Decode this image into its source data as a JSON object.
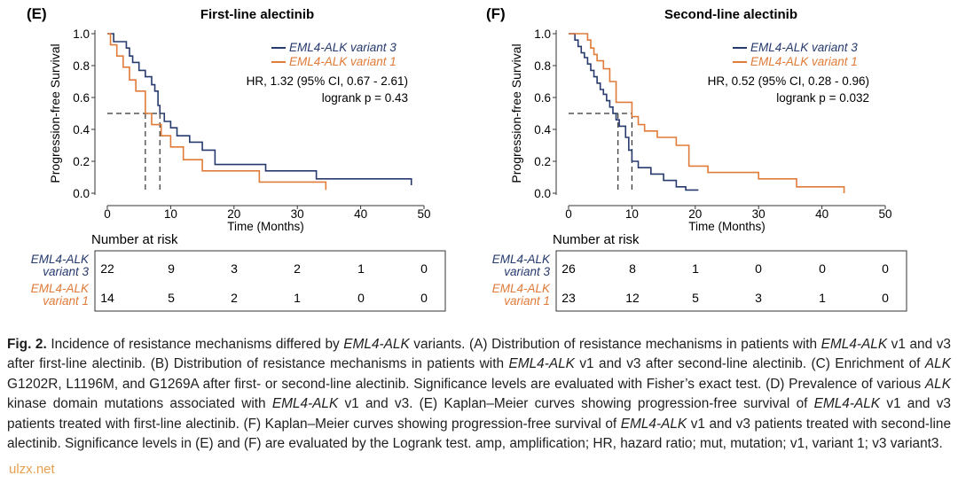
{
  "panels": [
    {
      "id": "E",
      "label": "(E)",
      "title": "First-line alectinib",
      "hr": "HR, 1.32 (95% CI, 0.67 - 2.61)",
      "p": "logrank p = 0.43",
      "risk_table": {
        "heading": "Number at risk",
        "rows": [
          {
            "name_line1": "EML4-ALK",
            "name_line2": "variant 3",
            "color": "#263a6e",
            "values": [
              "22",
              "9",
              "3",
              "2",
              "1",
              "0"
            ]
          },
          {
            "name_line1": "EML4-ALK",
            "name_line2": "variant 1",
            "color": "#e07b39",
            "values": [
              "14",
              "5",
              "2",
              "1",
              "0",
              "0"
            ]
          }
        ]
      }
    },
    {
      "id": "F",
      "label": "(F)",
      "title": "Second-line alectinib",
      "hr": "HR, 0.52 (95% CI, 0.28 - 0.96)",
      "p": "logrank p = 0.032",
      "risk_table": {
        "heading": "Number at risk",
        "rows": [
          {
            "name_line1": "EML4-ALK",
            "name_line2": "variant 3",
            "color": "#263a6e",
            "values": [
              "26",
              "8",
              "1",
              "0",
              "0",
              "0"
            ]
          },
          {
            "name_line1": "EML4-ALK",
            "name_line2": "variant 1",
            "color": "#e07b39",
            "values": [
              "23",
              "12",
              "5",
              "3",
              "1",
              "0"
            ]
          }
        ]
      }
    }
  ],
  "chart_data": [
    {
      "type": "line",
      "panel": "E",
      "title": "First-line alectinib",
      "xlabel": "Time  (Months)",
      "ylabel": "Progression-free Survival",
      "xlim": [
        0,
        50
      ],
      "ylim": [
        0,
        1
      ],
      "xticks": [
        "0",
        "10",
        "20",
        "30",
        "40",
        "50"
      ],
      "yticks": [
        "0.0",
        "0.2",
        "0.4",
        "0.6",
        "0.8",
        "1.0"
      ],
      "legend": "top-right",
      "median_lines": [
        {
          "y": 0.5,
          "x": 6
        },
        {
          "y": 0.5,
          "x": 8.3
        }
      ],
      "series": [
        {
          "name": "EML4-ALK variant 3",
          "color": "#263a6e",
          "step": true,
          "x": [
            0,
            1,
            2,
            3,
            3.5,
            4,
            5,
            6,
            7,
            7.5,
            8,
            8.3,
            9,
            10,
            11,
            13,
            15,
            17,
            25,
            33,
            48
          ],
          "y": [
            1.0,
            0.95,
            0.95,
            0.91,
            0.86,
            0.82,
            0.77,
            0.73,
            0.68,
            0.64,
            0.55,
            0.5,
            0.45,
            0.41,
            0.36,
            0.32,
            0.27,
            0.18,
            0.14,
            0.09,
            0.05
          ]
        },
        {
          "name": "EML4-ALK variant 1",
          "color": "#e07b39",
          "step": true,
          "x": [
            0,
            0.5,
            1.5,
            2.5,
            3.5,
            4.5,
            6,
            7,
            8.5,
            10,
            12,
            15,
            24,
            34.5
          ],
          "y": [
            1.0,
            0.93,
            0.86,
            0.79,
            0.71,
            0.64,
            0.5,
            0.43,
            0.36,
            0.29,
            0.21,
            0.14,
            0.07,
            0.02
          ]
        }
      ],
      "annotations": [
        "HR, 1.32 (95% CI, 0.67 - 2.61)",
        "logrank p = 0.43"
      ]
    },
    {
      "type": "line",
      "panel": "F",
      "title": "Second-line alectinib",
      "xlabel": "Time  (Months)",
      "ylabel": "Progression-free Survival",
      "xlim": [
        0,
        50
      ],
      "ylim": [
        0,
        1
      ],
      "xticks": [
        "0",
        "10",
        "20",
        "30",
        "40",
        "50"
      ],
      "yticks": [
        "0.0",
        "0.2",
        "0.4",
        "0.6",
        "0.8",
        "1.0"
      ],
      "legend": "top-right",
      "median_lines": [
        {
          "y": 0.5,
          "x": 7.8
        },
        {
          "y": 0.5,
          "x": 10
        }
      ],
      "series": [
        {
          "name": "EML4-ALK variant 3",
          "color": "#263a6e",
          "step": true,
          "x": [
            0,
            1,
            1.5,
            2,
            2.5,
            3,
            3.5,
            4,
            4.5,
            5,
            5.5,
            6,
            6.5,
            7,
            7.5,
            8,
            9,
            9.5,
            10,
            11,
            13,
            15,
            17,
            18.5,
            20.5
          ],
          "y": [
            1.0,
            0.96,
            0.92,
            0.88,
            0.85,
            0.81,
            0.77,
            0.73,
            0.69,
            0.65,
            0.62,
            0.58,
            0.54,
            0.5,
            0.46,
            0.42,
            0.35,
            0.27,
            0.2,
            0.16,
            0.12,
            0.08,
            0.04,
            0.02,
            0.02
          ]
        },
        {
          "name": "EML4-ALK variant 1",
          "color": "#e07b39",
          "step": true,
          "x": [
            0,
            3,
            3.5,
            4,
            4.5,
            5.5,
            6.5,
            7.5,
            10,
            11,
            12,
            14,
            17,
            19,
            22,
            30,
            36,
            43.5
          ],
          "y": [
            1.0,
            0.96,
            0.91,
            0.87,
            0.83,
            0.78,
            0.7,
            0.57,
            0.48,
            0.43,
            0.39,
            0.35,
            0.3,
            0.17,
            0.13,
            0.09,
            0.04,
            0.0
          ]
        }
      ],
      "annotations": [
        "HR, 0.52 (95% CI, 0.28 - 0.96)",
        "logrank p = 0.032"
      ]
    }
  ],
  "caption": {
    "fig_label": "Fig. 2.",
    "segments": [
      {
        "t": " Incidence of resistance mechanisms differed by ",
        "i": false
      },
      {
        "t": "EML4-ALK",
        "i": true
      },
      {
        "t": " variants. (A) Distribution of resistance mechanisms in patients with ",
        "i": false
      },
      {
        "t": "EML4-ALK",
        "i": true
      },
      {
        "t": " v1 and v3 after first-line alectinib. (B) Distribution of resistance mechanisms in patients with ",
        "i": false
      },
      {
        "t": "EML4-ALK",
        "i": true
      },
      {
        "t": " v1 and v3 after second-line alectinib. (C) Enrichment of ",
        "i": false
      },
      {
        "t": "ALK",
        "i": true
      },
      {
        "t": " G1202R, L1196M, and G1269A after first- or second-line alectinib. Significance levels are evaluated with Fisher’s exact test. (D) Prevalence of various ",
        "i": false
      },
      {
        "t": "ALK",
        "i": true
      },
      {
        "t": " kinase domain mutations associated with ",
        "i": false
      },
      {
        "t": "EML4-ALK",
        "i": true
      },
      {
        "t": " v1 and v3. (E) Kaplan–Meier curves showing progression-free survival of ",
        "i": false
      },
      {
        "t": "EML4-ALK",
        "i": true
      },
      {
        "t": " v1 and v3 patients treated with first-line alectinib. (F) Kaplan–Meier curves showing progression-free survival of ",
        "i": false
      },
      {
        "t": "EML4-ALK",
        "i": true
      },
      {
        "t": " v1 and v3 patients treated with second-line alectinib. Significance levels in (E) and (F) are evaluated by the Logrank test. amp, amplification; HR, hazard ratio; mut, mutation; v1, variant 1; v3 variant3.",
        "i": false
      }
    ]
  },
  "watermark": "ulzx.net"
}
